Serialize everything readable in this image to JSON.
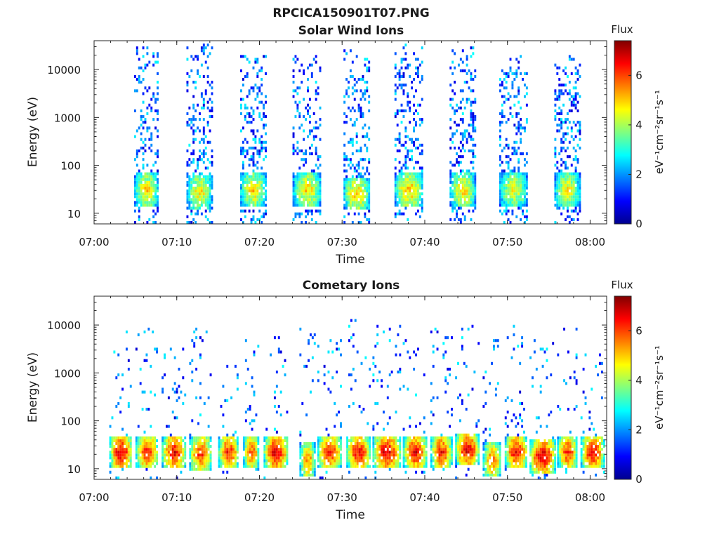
{
  "figure_title": "RPCICA150901T07.PNG",
  "chart_data": [
    {
      "type": "heatmap",
      "title": "Solar Wind Ions",
      "xlabel": "Time",
      "ylabel": "Energy (eV)",
      "x_range": [
        "07:00",
        "08:02"
      ],
      "x_ticks": [
        "07:00",
        "07:10",
        "07:20",
        "07:30",
        "07:40",
        "07:50",
        "08:00"
      ],
      "y_scale": "log",
      "y_range_eV": [
        6,
        40000
      ],
      "y_ticks": [
        "10",
        "100",
        "1000",
        "10000"
      ],
      "colorbar": {
        "title": "Flux",
        "label": "eV⁻¹cm⁻²sr⁻¹s⁻¹",
        "range": [
          0,
          7.4
        ],
        "ticks": [
          "0",
          "2",
          "4",
          "6"
        ],
        "colormap": "jet"
      },
      "bursts": [
        {
          "start": "07:04:50",
          "end": "07:07:40",
          "peak_energy_eV": 30,
          "peak_flux": 5.0,
          "max_energy_eV": 30000
        },
        {
          "start": "07:11:10",
          "end": "07:14:10",
          "peak_energy_eV": 28,
          "peak_flux": 4.8,
          "max_energy_eV": 35000
        },
        {
          "start": "07:17:40",
          "end": "07:20:40",
          "peak_energy_eV": 30,
          "peak_flux": 5.0,
          "max_energy_eV": 20000
        },
        {
          "start": "07:24:00",
          "end": "07:27:20",
          "peak_energy_eV": 30,
          "peak_flux": 5.0,
          "max_energy_eV": 20000
        },
        {
          "start": "07:30:10",
          "end": "07:33:10",
          "peak_energy_eV": 25,
          "peak_flux": 5.2,
          "max_energy_eV": 25000
        },
        {
          "start": "07:36:20",
          "end": "07:39:40",
          "peak_energy_eV": 30,
          "peak_flux": 5.2,
          "max_energy_eV": 35000
        },
        {
          "start": "07:43:00",
          "end": "07:46:00",
          "peak_energy_eV": 30,
          "peak_flux": 5.0,
          "max_energy_eV": 30000
        },
        {
          "start": "07:49:00",
          "end": "07:52:20",
          "peak_energy_eV": 30,
          "peak_flux": 4.6,
          "max_energy_eV": 20000
        },
        {
          "start": "07:55:40",
          "end": "07:58:40",
          "peak_energy_eV": 30,
          "peak_flux": 4.8,
          "max_energy_eV": 20000
        }
      ]
    },
    {
      "type": "heatmap",
      "title": "Cometary Ions",
      "xlabel": "Time",
      "ylabel": "Energy (eV)",
      "x_range": [
        "07:00",
        "08:02"
      ],
      "x_ticks": [
        "07:00",
        "07:10",
        "07:20",
        "07:30",
        "07:40",
        "07:50",
        "08:00"
      ],
      "y_scale": "log",
      "y_range_eV": [
        6,
        40000
      ],
      "y_ticks": [
        "10",
        "100",
        "1000",
        "10000"
      ],
      "colorbar": {
        "title": "Flux",
        "label": "eV⁻¹cm⁻²sr⁻¹s⁻¹",
        "range": [
          0,
          7.4
        ],
        "ticks": [
          "0",
          "2",
          "4",
          "6"
        ],
        "colormap": "jet"
      },
      "bursts": [
        {
          "start": "07:01:50",
          "end": "07:04:30",
          "peak_energy_eV": 22,
          "peak_flux": 6.8,
          "max_energy_eV": 8000
        },
        {
          "start": "07:05:00",
          "end": "07:07:40",
          "peak_energy_eV": 22,
          "peak_flux": 6.4,
          "max_energy_eV": 10000
        },
        {
          "start": "07:08:10",
          "end": "07:11:00",
          "peak_energy_eV": 22,
          "peak_flux": 6.6,
          "max_energy_eV": 5000
        },
        {
          "start": "07:11:30",
          "end": "07:14:10",
          "peak_energy_eV": 20,
          "peak_flux": 6.2,
          "max_energy_eV": 10000
        },
        {
          "start": "07:15:00",
          "end": "07:17:20",
          "peak_energy_eV": 22,
          "peak_flux": 6.4,
          "max_energy_eV": 1500
        },
        {
          "start": "07:18:00",
          "end": "07:19:50",
          "peak_energy_eV": 22,
          "peak_flux": 6.0,
          "max_energy_eV": 5000
        },
        {
          "start": "07:20:30",
          "end": "07:23:20",
          "peak_energy_eV": 22,
          "peak_flux": 6.8,
          "max_energy_eV": 8000
        },
        {
          "start": "07:24:50",
          "end": "07:26:40",
          "peak_energy_eV": 15,
          "peak_flux": 5.6,
          "max_energy_eV": 10000
        },
        {
          "start": "07:27:00",
          "end": "07:29:50",
          "peak_energy_eV": 22,
          "peak_flux": 6.4,
          "max_energy_eV": 5000
        },
        {
          "start": "07:30:30",
          "end": "07:33:20",
          "peak_energy_eV": 22,
          "peak_flux": 6.6,
          "max_energy_eV": 14000
        },
        {
          "start": "07:33:40",
          "end": "07:37:00",
          "peak_energy_eV": 22,
          "peak_flux": 6.8,
          "max_energy_eV": 10000
        },
        {
          "start": "07:37:20",
          "end": "07:40:10",
          "peak_energy_eV": 22,
          "peak_flux": 6.6,
          "max_energy_eV": 5000
        },
        {
          "start": "07:40:40",
          "end": "07:43:10",
          "peak_energy_eV": 22,
          "peak_flux": 6.4,
          "max_energy_eV": 10000
        },
        {
          "start": "07:43:40",
          "end": "07:46:30",
          "peak_energy_eV": 25,
          "peak_flux": 6.8,
          "max_energy_eV": 10000
        },
        {
          "start": "07:47:00",
          "end": "07:49:10",
          "peak_energy_eV": 15,
          "peak_flux": 5.8,
          "max_energy_eV": 8000
        },
        {
          "start": "07:49:40",
          "end": "07:52:20",
          "peak_energy_eV": 22,
          "peak_flux": 6.6,
          "max_energy_eV": 10000
        },
        {
          "start": "07:52:40",
          "end": "07:55:40",
          "peak_energy_eV": 18,
          "peak_flux": 7.0,
          "max_energy_eV": 5000
        },
        {
          "start": "07:56:00",
          "end": "07:58:20",
          "peak_energy_eV": 22,
          "peak_flux": 6.2,
          "max_energy_eV": 10000
        },
        {
          "start": "07:58:50",
          "end": "08:01:40",
          "peak_energy_eV": 22,
          "peak_flux": 6.6,
          "max_energy_eV": 3000
        }
      ]
    }
  ]
}
